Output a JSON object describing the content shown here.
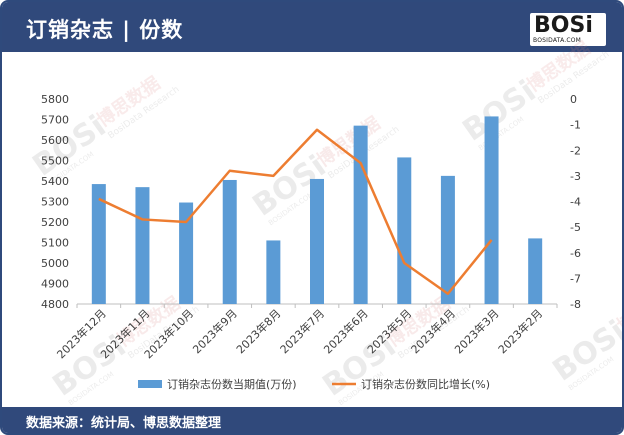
{
  "header": {
    "title": "订销杂志 | 份数",
    "logo_text": "BOSi",
    "logo_site": "BOSIDATA.COM"
  },
  "footer": {
    "source": "数据来源：统计局、博思数据整理"
  },
  "watermark": {
    "brand": "BOSi",
    "cn": "博思数据",
    "en": "BosiData Research",
    "site": "BOSIDATA.COM"
  },
  "colors": {
    "header_bg": "#30497b",
    "bar": "#5b9bd5",
    "line": "#ed7d31",
    "axis_text": "#404040",
    "grid": "#d9d9d9"
  },
  "chart_data": {
    "type": "bar",
    "categories": [
      "2023年12月",
      "2023年11月",
      "2023年10月",
      "2023年9月",
      "2023年8月",
      "2023年7月",
      "2023年6月",
      "2023年5月",
      "2023年4月",
      "2023年3月",
      "2023年2月"
    ],
    "series": [
      {
        "name": "订销杂志份数当期值(万份)",
        "type": "bar",
        "axis": "left",
        "values": [
          5385,
          5370,
          5295,
          5405,
          5110,
          5410,
          5670,
          5515,
          5425,
          5715,
          5120
        ]
      },
      {
        "name": "订销杂志份数同比增长(%)",
        "type": "line",
        "axis": "right",
        "values": [
          -3.9,
          -4.7,
          -4.8,
          -2.8,
          -3.0,
          -1.2,
          -2.5,
          -6.4,
          -7.6,
          -5.5,
          null
        ]
      }
    ],
    "y_left": {
      "min": 4800,
      "max": 5800,
      "ticks": [
        4800,
        4900,
        5000,
        5100,
        5200,
        5300,
        5400,
        5500,
        5600,
        5700,
        5800
      ]
    },
    "y_right": {
      "min": -8,
      "max": 0,
      "ticks": [
        0,
        -1,
        -2,
        -3,
        -4,
        -5,
        -6,
        -7,
        -8
      ]
    },
    "grid": false,
    "legend_position": "bottom"
  }
}
